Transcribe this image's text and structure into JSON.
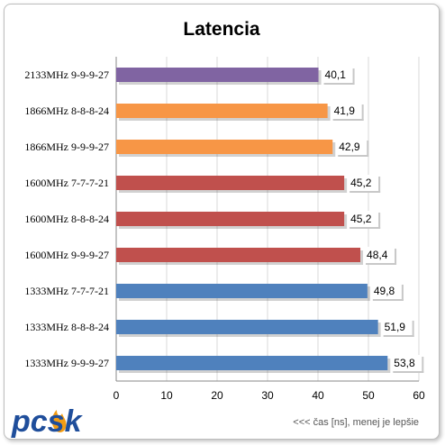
{
  "chart_data": {
    "type": "bar",
    "orientation": "horizontal",
    "title": "Latencia",
    "categories": [
      "2133MHz 9-9-9-27",
      "1866MHz 8-8-8-24",
      "1866MHz 9-9-9-27",
      "1600MHz 7-7-7-21",
      "1600MHz 8-8-8-24",
      "1600MHz 9-9-9-27",
      "1333MHz 7-7-7-21",
      "1333MHz 8-8-8-24",
      "1333MHz 9-9-9-27"
    ],
    "values": [
      40.1,
      41.9,
      42.9,
      45.2,
      45.2,
      48.4,
      49.8,
      51.9,
      53.8
    ],
    "value_labels": [
      "40,1",
      "41,9",
      "42,9",
      "45,2",
      "45,2",
      "48,4",
      "49,8",
      "51,9",
      "53,8"
    ],
    "bar_colors": [
      "#8064a2",
      "#f79646",
      "#f79646",
      "#c0504d",
      "#c0504d",
      "#c0504d",
      "#4f81bd",
      "#4f81bd",
      "#4f81bd"
    ],
    "xlim": [
      0,
      60
    ],
    "xticks": [
      "0",
      "10",
      "20",
      "30",
      "40",
      "50",
      "60"
    ],
    "grid": true,
    "footnote": "<<< čas [ns], menej je lepšie"
  },
  "logo": {
    "text": "pcsk"
  }
}
